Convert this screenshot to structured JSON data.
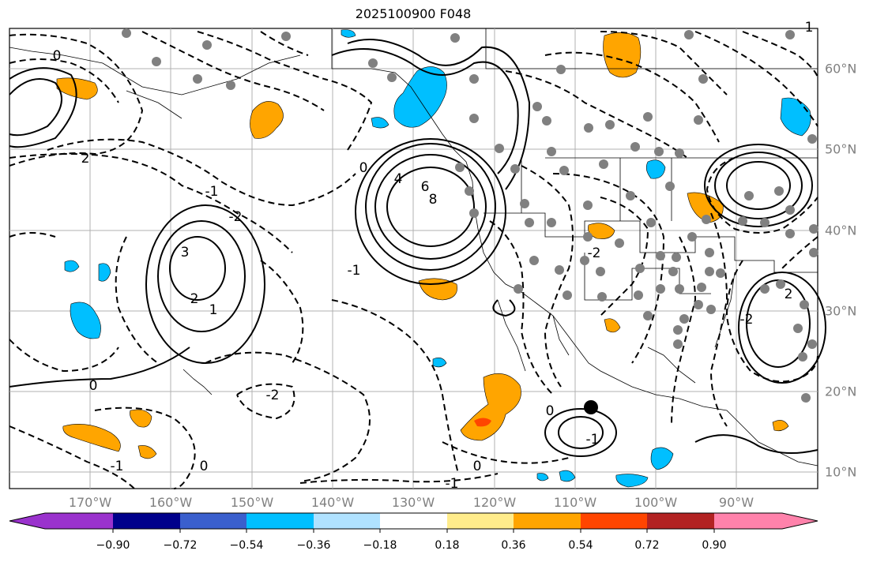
{
  "title": "2025100900 F048",
  "lon_labels": [
    "170°W",
    "160°W",
    "150°W",
    "140°W",
    "130°W",
    "120°W",
    "110°W",
    "100°W",
    "90°W"
  ],
  "lat_labels": [
    "60°N",
    "50°N",
    "40°N",
    "30°N",
    "20°N",
    "10°N"
  ],
  "colorbar": {
    "colors": [
      "#9a32cd",
      "#00008b",
      "#3a5fcd",
      "#00bfff",
      "#b0e2ff",
      "#ffffff",
      "#ffec8b",
      "#ffa500",
      "#ff4500",
      "#b22222",
      "#ff82ab"
    ],
    "ticks": [
      "−0.90",
      "−0.72",
      "−0.54",
      "−0.36",
      "−0.18",
      "0.18",
      "0.36",
      "0.54",
      "0.72",
      "0.90"
    ]
  },
  "contour_labels": [
    "0",
    "2",
    "3",
    "-1",
    "-2",
    "4",
    "6",
    "8",
    "1",
    "0",
    "-1",
    "-1",
    "-2",
    "2",
    "-2",
    "0",
    "-1",
    "0",
    "-2",
    "-1",
    "0",
    "1",
    "2",
    "0"
  ],
  "colors": {
    "orange": "#ffa500",
    "cyan": "#00bfff",
    "red": "#ff4500",
    "grid": "#b0b0b0",
    "station": "#808080"
  }
}
